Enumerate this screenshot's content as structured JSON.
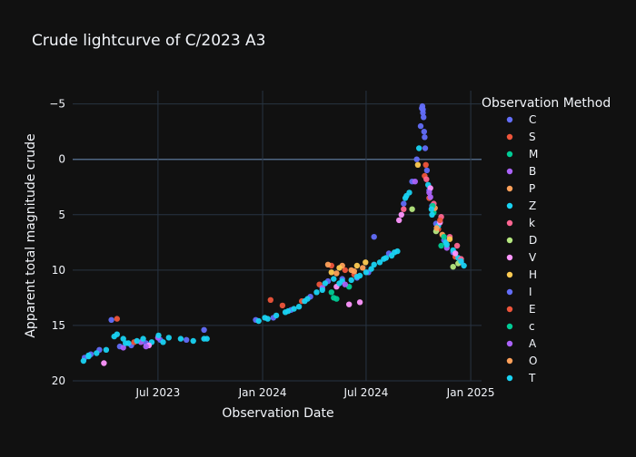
{
  "chart_data": {
    "type": "scatter",
    "title": "Crude lightcurve of C/2023 A3",
    "xlabel": "Observation Date",
    "ylabel": "Apparent total magnitude crude",
    "x_range": [
      "2023-02-01",
      "2025-01-20"
    ],
    "y_range": [
      20,
      -6.2
    ],
    "y_reversed": true,
    "x_ticks": [
      {
        "date": "2023-07-01",
        "label": "Jul 2023"
      },
      {
        "date": "2024-01-01",
        "label": "Jan 2024"
      },
      {
        "date": "2024-07-01",
        "label": "Jul 2024"
      },
      {
        "date": "2025-01-01",
        "label": "Jan 2025"
      }
    ],
    "y_ticks": [
      -5,
      0,
      5,
      10,
      15,
      20
    ],
    "y_tick_labels": [
      "−5",
      "0",
      "5",
      "10",
      "15",
      "20"
    ],
    "grid": true,
    "legend": {
      "title": "Observation Method",
      "placement": "right",
      "entries": [
        {
          "name": "C",
          "color": "#636efa"
        },
        {
          "name": "S",
          "color": "#EF553B"
        },
        {
          "name": "M",
          "color": "#00cc96"
        },
        {
          "name": "B",
          "color": "#ab63fa"
        },
        {
          "name": "P",
          "color": "#FFA15A"
        },
        {
          "name": "Z",
          "color": "#19d3f3"
        },
        {
          "name": "k",
          "color": "#FF6692"
        },
        {
          "name": "D",
          "color": "#B6E880"
        },
        {
          "name": "V",
          "color": "#FF97FF"
        },
        {
          "name": "H",
          "color": "#FECB52"
        },
        {
          "name": "I",
          "color": "#636efa"
        },
        {
          "name": "E",
          "color": "#EF553B"
        },
        {
          "name": "c",
          "color": "#00cc96"
        },
        {
          "name": "A",
          "color": "#ab63fa"
        },
        {
          "name": "O",
          "color": "#FFA15A"
        },
        {
          "name": "T",
          "color": "#19d3f3"
        }
      ]
    },
    "series": [
      {
        "name": "C",
        "points": [
          [
            "2023-02-22",
            17.9
          ],
          [
            "2023-03-05",
            17.6
          ],
          [
            "2023-03-20",
            17.2
          ],
          [
            "2023-04-10",
            14.5
          ],
          [
            "2023-04-25",
            16.9
          ],
          [
            "2023-05-15",
            16.8
          ],
          [
            "2023-06-10",
            16.6
          ],
          [
            "2023-07-05",
            16.3
          ],
          [
            "2023-08-20",
            16.3
          ],
          [
            "2023-09-20",
            15.4
          ],
          [
            "2023-12-20",
            14.5
          ],
          [
            "2024-01-20",
            14.3
          ],
          [
            "2024-02-20",
            13.6
          ],
          [
            "2024-03-25",
            12.4
          ],
          [
            "2024-04-25",
            11.0
          ],
          [
            "2024-05-20",
            10.8
          ],
          [
            "2024-06-15",
            10.7
          ],
          [
            "2024-07-05",
            10.2
          ],
          [
            "2024-07-15",
            7.0
          ],
          [
            "2024-08-10",
            8.5
          ],
          [
            "2024-09-05",
            4.0
          ],
          [
            "2024-09-20",
            2.0
          ],
          [
            "2024-09-28",
            0.0
          ],
          [
            "2024-10-05",
            -3.0
          ],
          [
            "2024-10-08",
            -4.8
          ],
          [
            "2024-10-09",
            -4.5
          ],
          [
            "2024-10-10",
            -3.8
          ],
          [
            "2024-10-11",
            -2.5
          ],
          [
            "2024-10-13",
            -1.0
          ],
          [
            "2024-10-16",
            1.0
          ],
          [
            "2024-10-20",
            2.8
          ],
          [
            "2024-10-25",
            4.2
          ],
          [
            "2024-11-01",
            5.8
          ],
          [
            "2024-11-15",
            7.3
          ],
          [
            "2024-12-01",
            8.4
          ],
          [
            "2024-12-15",
            9.3
          ]
        ]
      },
      {
        "name": "S",
        "points": [
          [
            "2023-04-20",
            14.4
          ],
          [
            "2023-05-20",
            16.5
          ],
          [
            "2024-01-15",
            12.7
          ],
          [
            "2024-02-05",
            13.2
          ],
          [
            "2024-03-10",
            12.8
          ],
          [
            "2024-04-10",
            11.3
          ],
          [
            "2024-05-01",
            9.6
          ],
          [
            "2024-05-25",
            10.0
          ],
          [
            "2024-06-10",
            10.4
          ],
          [
            "2024-10-12",
            1.5
          ],
          [
            "2024-10-20",
            3.5
          ],
          [
            "2024-11-05",
            6.3
          ],
          [
            "2024-12-05",
            8.8
          ]
        ]
      },
      {
        "name": "M",
        "points": [
          [
            "2024-05-01",
            12.0
          ],
          [
            "2024-05-05",
            12.5
          ],
          [
            "2024-05-10",
            12.6
          ],
          [
            "2024-06-01",
            11.5
          ],
          [
            "2024-10-28",
            4.8
          ],
          [
            "2024-11-10",
            7.8
          ]
        ]
      },
      {
        "name": "B",
        "points": [
          [
            "2023-05-01",
            17.0
          ],
          [
            "2023-06-01",
            16.5
          ],
          [
            "2023-07-01",
            16.1
          ],
          [
            "2024-09-25",
            2.0
          ],
          [
            "2024-10-22",
            3.4
          ],
          [
            "2024-11-20",
            8.0
          ]
        ]
      },
      {
        "name": "P",
        "points": [
          [
            "2024-04-25",
            9.5
          ],
          [
            "2024-05-20",
            9.6
          ],
          [
            "2024-06-05",
            10.0
          ],
          [
            "2024-06-25",
            9.8
          ],
          [
            "2024-10-30",
            4.4
          ],
          [
            "2024-11-12",
            6.8
          ]
        ]
      },
      {
        "name": "Z",
        "points": [
          [
            "2023-02-20",
            18.2
          ],
          [
            "2023-03-01",
            17.8
          ],
          [
            "2023-03-15",
            17.5
          ],
          [
            "2023-04-01",
            17.2
          ],
          [
            "2023-04-15",
            16.0
          ],
          [
            "2023-04-20",
            15.8
          ],
          [
            "2023-05-01",
            16.2
          ],
          [
            "2023-05-10",
            16.6
          ],
          [
            "2023-05-25",
            16.4
          ],
          [
            "2023-06-05",
            16.2
          ],
          [
            "2023-06-20",
            16.5
          ],
          [
            "2023-07-02",
            15.9
          ],
          [
            "2023-07-20",
            16.1
          ],
          [
            "2023-08-10",
            16.2
          ],
          [
            "2023-09-01",
            16.4
          ],
          [
            "2023-09-25",
            16.2
          ],
          [
            "2023-12-25",
            14.6
          ],
          [
            "2024-01-05",
            14.3
          ],
          [
            "2024-01-25",
            14.1
          ],
          [
            "2024-02-10",
            13.8
          ],
          [
            "2024-02-25",
            13.5
          ],
          [
            "2024-03-05",
            13.3
          ],
          [
            "2024-03-20",
            12.6
          ],
          [
            "2024-04-05",
            12.0
          ],
          [
            "2024-04-20",
            11.2
          ],
          [
            "2024-05-05",
            10.8
          ],
          [
            "2024-05-20",
            11.0
          ],
          [
            "2024-06-05",
            10.9
          ],
          [
            "2024-06-20",
            10.5
          ],
          [
            "2024-07-01",
            10.2
          ],
          [
            "2024-07-15",
            9.5
          ],
          [
            "2024-07-25",
            9.3
          ],
          [
            "2024-08-05",
            8.9
          ],
          [
            "2024-08-15",
            8.7
          ],
          [
            "2024-08-25",
            8.3
          ],
          [
            "2024-09-10",
            3.3
          ],
          [
            "2024-09-15",
            3.0
          ],
          [
            "2024-10-18",
            2.3
          ],
          [
            "2024-10-25",
            5.0
          ],
          [
            "2024-11-05",
            6.0
          ],
          [
            "2024-11-18",
            7.5
          ],
          [
            "2024-12-01",
            8.2
          ],
          [
            "2024-12-10",
            8.9
          ],
          [
            "2024-12-20",
            9.6
          ]
        ]
      },
      {
        "name": "k",
        "points": [
          [
            "2024-09-05",
            4.5
          ],
          [
            "2024-10-15",
            1.8
          ],
          [
            "2024-10-28",
            4.0
          ],
          [
            "2024-11-10",
            5.2
          ],
          [
            "2024-11-25",
            7.0
          ],
          [
            "2024-12-08",
            7.8
          ],
          [
            "2024-12-15",
            9.0
          ]
        ]
      },
      {
        "name": "D",
        "points": [
          [
            "2024-09-20",
            4.5
          ],
          [
            "2024-11-01",
            6.5
          ],
          [
            "2024-12-01",
            9.7
          ],
          [
            "2024-12-10",
            9.4
          ]
        ]
      },
      {
        "name": "V",
        "points": [
          [
            "2023-03-28",
            18.4
          ],
          [
            "2023-06-15",
            16.8
          ],
          [
            "2024-05-10",
            11.5
          ],
          [
            "2024-06-01",
            13.1
          ],
          [
            "2024-06-20",
            12.9
          ],
          [
            "2024-08-28",
            5.5
          ],
          [
            "2024-09-01",
            5.0
          ],
          [
            "2024-10-22",
            2.6
          ],
          [
            "2024-11-08",
            5.7
          ],
          [
            "2024-12-05",
            8.5
          ]
        ]
      },
      {
        "name": "H",
        "points": [
          [
            "2024-05-01",
            10.2
          ],
          [
            "2024-05-15",
            9.8
          ],
          [
            "2024-06-15",
            9.6
          ],
          [
            "2024-06-30",
            9.3
          ],
          [
            "2024-09-30",
            0.5
          ],
          [
            "2024-11-25",
            7.2
          ]
        ]
      },
      {
        "name": "I",
        "points": [
          [
            "2024-10-07",
            -4.6
          ],
          [
            "2024-10-09",
            -4.2
          ],
          [
            "2024-10-12",
            -2.0
          ]
        ]
      },
      {
        "name": "E",
        "points": [
          [
            "2024-10-14",
            0.5
          ],
          [
            "2024-11-08",
            5.5
          ]
        ]
      },
      {
        "name": "c",
        "points": [
          [
            "2024-10-26",
            4.2
          ],
          [
            "2024-11-15",
            7.0
          ]
        ]
      },
      {
        "name": "A",
        "points": [
          [
            "2023-06-10",
            16.9
          ],
          [
            "2024-04-15",
            11.6
          ],
          [
            "2024-05-25",
            11.3
          ],
          [
            "2024-10-20",
            3.0
          ]
        ]
      },
      {
        "name": "O",
        "points": [
          [
            "2024-05-10",
            10.3
          ],
          [
            "2024-06-10",
            10.1
          ],
          [
            "2024-11-02",
            6.2
          ]
        ]
      },
      {
        "name": "T",
        "points": [
          [
            "2023-03-01",
            17.7
          ],
          [
            "2023-05-05",
            16.6
          ],
          [
            "2023-07-10",
            16.5
          ],
          [
            "2023-09-20",
            16.2
          ],
          [
            "2024-01-10",
            14.4
          ],
          [
            "2024-02-15",
            13.7
          ],
          [
            "2024-03-15",
            12.8
          ],
          [
            "2024-04-15",
            11.8
          ],
          [
            "2024-05-15",
            11.2
          ],
          [
            "2024-06-15",
            10.6
          ],
          [
            "2024-07-10",
            9.9
          ],
          [
            "2024-08-01",
            9.0
          ],
          [
            "2024-08-20",
            8.4
          ],
          [
            "2024-09-08",
            3.5
          ],
          [
            "2024-10-02",
            -1.0
          ],
          [
            "2024-10-24",
            4.5
          ],
          [
            "2024-11-20",
            7.7
          ],
          [
            "2024-12-15",
            9.2
          ]
        ]
      }
    ]
  }
}
